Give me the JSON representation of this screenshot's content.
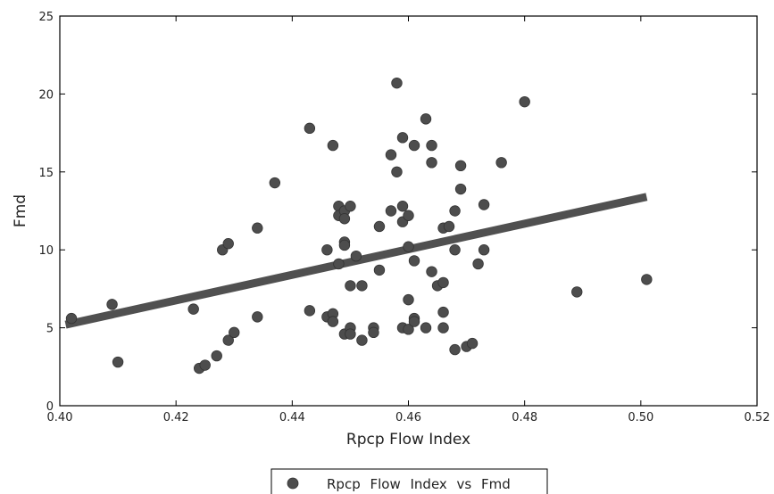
{
  "chart_data": {
    "type": "scatter",
    "title": "",
    "xlabel": "Rpcp  Flow  Index",
    "ylabel": "Fmd",
    "xlim": [
      0.4,
      0.52
    ],
    "ylim": [
      0,
      25
    ],
    "xticks": [
      "0.40",
      "0.42",
      "0.44",
      "0.46",
      "0.48",
      "0.50",
      "0.52"
    ],
    "yticks": [
      "0",
      "5",
      "10",
      "15",
      "20",
      "25"
    ],
    "xtick_values": [
      0.4,
      0.42,
      0.44,
      0.46,
      0.48,
      0.5,
      0.52
    ],
    "ytick_values": [
      0,
      5,
      10,
      15,
      20,
      25
    ],
    "grid": false,
    "legend_position": "bottom-center",
    "colors": {
      "marker": "#4d4d4d",
      "trendline": "#505050",
      "axis": "#000000"
    },
    "series": [
      {
        "name": "Rpcp  Flow  Index  vs  Fmd",
        "points": [
          [
            0.402,
            5.6
          ],
          [
            0.409,
            6.5
          ],
          [
            0.41,
            2.8
          ],
          [
            0.423,
            6.2
          ],
          [
            0.424,
            2.4
          ],
          [
            0.425,
            2.6
          ],
          [
            0.427,
            3.2
          ],
          [
            0.428,
            10.0
          ],
          [
            0.429,
            4.2
          ],
          [
            0.429,
            10.4
          ],
          [
            0.43,
            4.7
          ],
          [
            0.434,
            11.4
          ],
          [
            0.434,
            5.7
          ],
          [
            0.437,
            14.3
          ],
          [
            0.443,
            17.8
          ],
          [
            0.443,
            6.1
          ],
          [
            0.446,
            10.0
          ],
          [
            0.446,
            5.7
          ],
          [
            0.447,
            16.7
          ],
          [
            0.447,
            5.9
          ],
          [
            0.447,
            5.4
          ],
          [
            0.448,
            12.8
          ],
          [
            0.448,
            12.2
          ],
          [
            0.448,
            9.1
          ],
          [
            0.449,
            12.5
          ],
          [
            0.449,
            12.0
          ],
          [
            0.449,
            10.5
          ],
          [
            0.449,
            10.3
          ],
          [
            0.449,
            4.6
          ],
          [
            0.45,
            12.8
          ],
          [
            0.45,
            7.7
          ],
          [
            0.45,
            5.0
          ],
          [
            0.45,
            4.6
          ],
          [
            0.451,
            9.6
          ],
          [
            0.452,
            7.7
          ],
          [
            0.452,
            4.2
          ],
          [
            0.454,
            5.0
          ],
          [
            0.454,
            4.7
          ],
          [
            0.455,
            11.5
          ],
          [
            0.455,
            8.7
          ],
          [
            0.457,
            16.1
          ],
          [
            0.457,
            12.5
          ],
          [
            0.458,
            20.7
          ],
          [
            0.458,
            15.0
          ],
          [
            0.459,
            17.2
          ],
          [
            0.459,
            12.8
          ],
          [
            0.459,
            11.8
          ],
          [
            0.459,
            5.0
          ],
          [
            0.46,
            12.2
          ],
          [
            0.46,
            10.2
          ],
          [
            0.46,
            6.8
          ],
          [
            0.46,
            4.9
          ],
          [
            0.461,
            16.7
          ],
          [
            0.461,
            9.3
          ],
          [
            0.461,
            5.6
          ],
          [
            0.461,
            5.4
          ],
          [
            0.463,
            18.4
          ],
          [
            0.463,
            5.0
          ],
          [
            0.464,
            16.7
          ],
          [
            0.464,
            15.6
          ],
          [
            0.464,
            8.6
          ],
          [
            0.465,
            7.7
          ],
          [
            0.466,
            11.4
          ],
          [
            0.466,
            7.9
          ],
          [
            0.466,
            6.0
          ],
          [
            0.466,
            5.0
          ],
          [
            0.467,
            11.5
          ],
          [
            0.468,
            12.5
          ],
          [
            0.468,
            10.0
          ],
          [
            0.468,
            3.6
          ],
          [
            0.469,
            15.4
          ],
          [
            0.469,
            13.9
          ],
          [
            0.47,
            3.8
          ],
          [
            0.471,
            4.0
          ],
          [
            0.472,
            9.1
          ],
          [
            0.473,
            12.9
          ],
          [
            0.473,
            10.0
          ],
          [
            0.476,
            15.6
          ],
          [
            0.48,
            19.5
          ],
          [
            0.489,
            7.3
          ],
          [
            0.501,
            8.1
          ]
        ]
      }
    ],
    "trendline": {
      "x": [
        0.401,
        0.501
      ],
      "y": [
        5.2,
        13.4
      ]
    }
  }
}
